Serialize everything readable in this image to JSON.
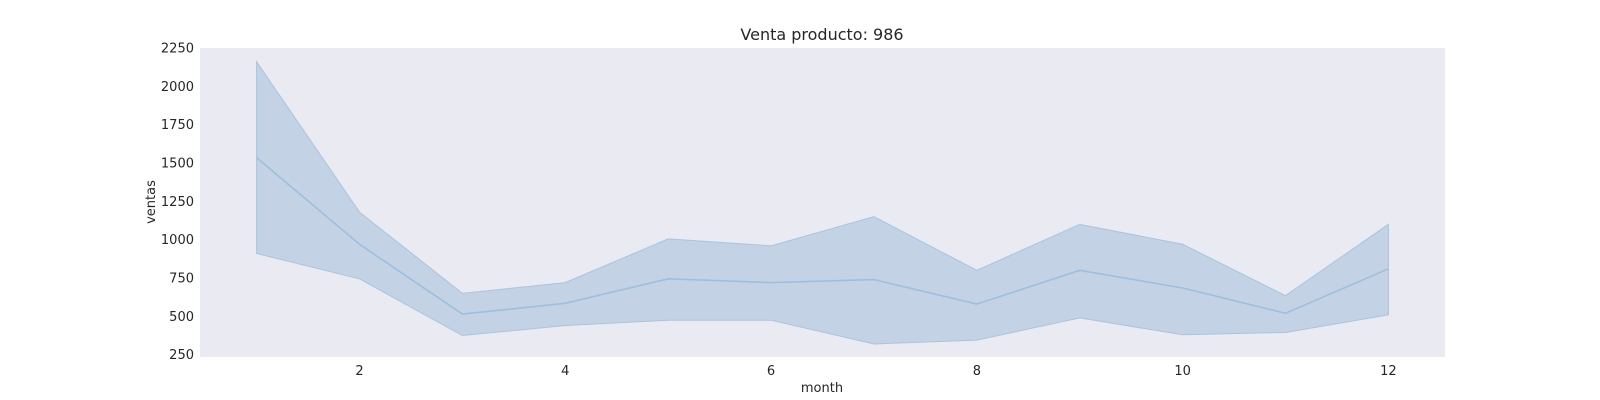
{
  "chart_data": {
    "type": "line",
    "title": "Venta producto: 986",
    "xlabel": "month",
    "ylabel": "ventas",
    "x": [
      1,
      2,
      3,
      4,
      5,
      6,
      7,
      8,
      9,
      10,
      11,
      12
    ],
    "series": [
      {
        "values": [
          1535,
          970,
          515,
          585,
          745,
          720,
          740,
          580,
          800,
          685,
          520,
          810
        ],
        "ci_upper": [
          2160,
          1180,
          650,
          720,
          1005,
          960,
          1150,
          800,
          1100,
          970,
          635,
          1100
        ],
        "ci_lower": [
          910,
          745,
          375,
          440,
          475,
          475,
          320,
          345,
          490,
          380,
          395,
          510
        ]
      }
    ],
    "xticks": [
      2,
      4,
      6,
      8,
      10,
      12
    ],
    "yticks": [
      250,
      500,
      750,
      1000,
      1250,
      1500,
      1750,
      2000,
      2250
    ],
    "xlim": [
      0.45,
      12.55
    ],
    "ylim": [
      235,
      2250
    ],
    "grid": false,
    "colors": {
      "plot_background": "#eaeaf2",
      "line": "#9ebfdc",
      "band_fill": "#c3d3e5",
      "band_edge": "#a9c4de"
    }
  }
}
